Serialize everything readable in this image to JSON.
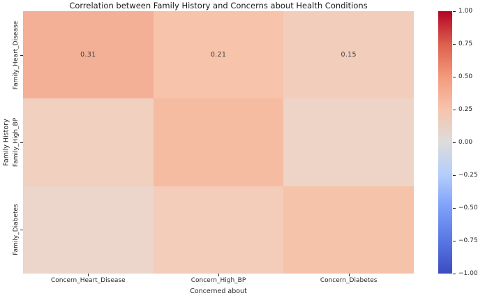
{
  "chart_data": {
    "type": "heatmap",
    "title": "Correlation between Family History and Concerns about Health Conditions",
    "xlabel": "Concerned about",
    "ylabel": "Family History",
    "x_categories": [
      "Concern_Heart_Disease",
      "Concern_High_BP",
      "Concern_Diabetes"
    ],
    "y_categories": [
      "Family_Heart_Disease",
      "Family_High_BP",
      "Family_Diabetes"
    ],
    "colormap": "coolwarm",
    "vmin": -1.0,
    "vmax": 1.0,
    "values": [
      [
        0.31,
        0.21,
        0.15
      ],
      [
        0.12,
        0.27,
        0.09
      ],
      [
        0.08,
        0.13,
        0.19
      ]
    ],
    "values_note": "Row 1 values shown as on-chart annotations; rows 2-3 are unlabeled in the image and estimated from cell colors.",
    "cell_labels": [
      [
        "0.31",
        "0.21",
        "0.15"
      ],
      [
        null,
        null,
        null
      ],
      [
        null,
        null,
        null
      ]
    ],
    "cell_colors": [
      [
        "#f4b096",
        "#f7c3aa",
        "#f2cdbb"
      ],
      [
        "#f1d0c0",
        "#f6bca2",
        "#eed4c7"
      ],
      [
        "#ecd5ca",
        "#f3ccba",
        "#f5c2aa"
      ]
    ],
    "annotation_color": "#3a3a3a",
    "grid": false,
    "colorbar": {
      "position": "right",
      "tick_labels": [
        "1.00",
        "0.75",
        "0.50",
        "0.25",
        "0.00",
        "−0.25",
        "−0.50",
        "−0.75",
        "−1.00"
      ],
      "tick_values": [
        1.0,
        0.75,
        0.5,
        0.25,
        0.0,
        -0.25,
        -0.5,
        -0.75,
        -1.0
      ],
      "gradient": [
        {
          "pos": 0,
          "color": "#b40426"
        },
        {
          "pos": 12.5,
          "color": "#dc5f4c"
        },
        {
          "pos": 25,
          "color": "#f49a7b"
        },
        {
          "pos": 37.5,
          "color": "#f6c4ad"
        },
        {
          "pos": 50,
          "color": "#dddcdb"
        },
        {
          "pos": 62.5,
          "color": "#b3cdfb"
        },
        {
          "pos": 75,
          "color": "#7c9ff9"
        },
        {
          "pos": 87.5,
          "color": "#5977e3"
        },
        {
          "pos": 100,
          "color": "#3b4cc0"
        }
      ]
    }
  }
}
